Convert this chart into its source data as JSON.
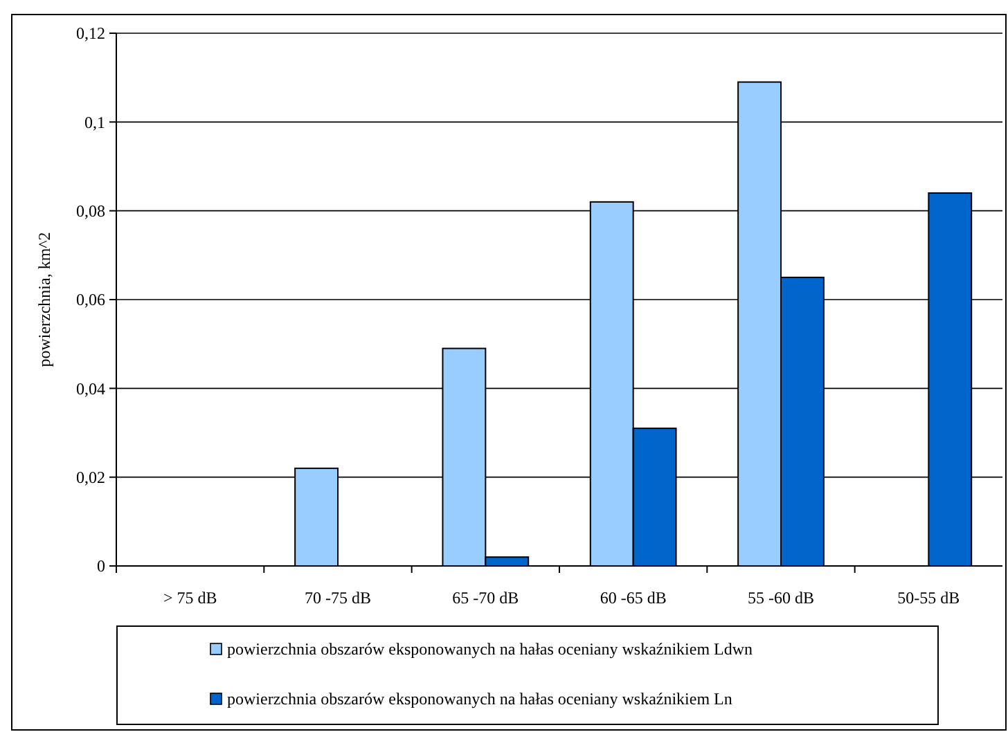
{
  "chart_data": {
    "type": "bar",
    "ylabel": "powierzchnia, km^2",
    "categories": [
      "> 75 dB",
      "70 -75 dB",
      "65 -70 dB",
      "60 -65 dB",
      "55 -60 dB",
      "50-55 dB"
    ],
    "series": [
      {
        "name": "powierzchnia obszarów eksponowanych na hałas oceniany wskaźnikiem Ldwn",
        "color": "#99ccff",
        "values": [
          0,
          0.022,
          0.049,
          0.082,
          0.109,
          0
        ]
      },
      {
        "name": "powierzchnia obszarów eksponowanych na hałas oceniany wskaźnikiem Ln",
        "color": "#0066cc",
        "values": [
          0,
          0,
          0.002,
          0.031,
          0.065,
          0.084
        ]
      }
    ],
    "ylim": [
      0,
      0.12
    ],
    "yticks": [
      {
        "value": 0,
        "label": "0"
      },
      {
        "value": 0.02,
        "label": "0,02"
      },
      {
        "value": 0.04,
        "label": "0,04"
      },
      {
        "value": 0.06,
        "label": "0,06"
      },
      {
        "value": 0.08,
        "label": "0,08"
      },
      {
        "value": 0.1,
        "label": "0,1"
      },
      {
        "value": 0.12,
        "label": "0,12"
      }
    ],
    "grid": "y",
    "legend": "bottom"
  }
}
